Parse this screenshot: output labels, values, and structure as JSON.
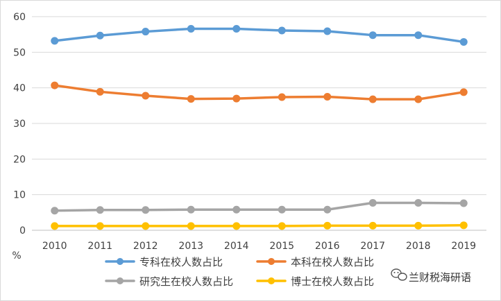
{
  "chart_data": {
    "type": "line",
    "categories": [
      "2010",
      "2011",
      "2012",
      "2013",
      "2014",
      "2015",
      "2016",
      "2017",
      "2018",
      "2019"
    ],
    "ylim": [
      0,
      60
    ],
    "yticks": [
      0,
      10,
      20,
      30,
      40,
      50,
      60
    ],
    "ylabel": "%",
    "grid": true,
    "legend_position": "bottom",
    "series": [
      {
        "name": "专科在校人数占比",
        "color": "#5b9bd5",
        "values": [
          53.2,
          54.7,
          55.8,
          56.6,
          56.6,
          56.1,
          55.9,
          54.8,
          54.8,
          52.9
        ]
      },
      {
        "name": "本科在校人数占比",
        "color": "#ed7d31",
        "values": [
          40.7,
          38.9,
          37.8,
          36.9,
          37.0,
          37.4,
          37.5,
          36.8,
          36.8,
          38.8
        ]
      },
      {
        "name": "研究生在校人数占比",
        "color": "#a5a5a5",
        "values": [
          5.5,
          5.7,
          5.7,
          5.8,
          5.8,
          5.8,
          5.8,
          7.7,
          7.7,
          7.6
        ]
      },
      {
        "name": "博士在校人数占比",
        "color": "#ffc000",
        "values": [
          1.2,
          1.2,
          1.2,
          1.2,
          1.2,
          1.2,
          1.3,
          1.3,
          1.3,
          1.4
        ]
      }
    ]
  },
  "watermark": {
    "text": "兰财税海研语",
    "icon": "wechat-icon"
  }
}
